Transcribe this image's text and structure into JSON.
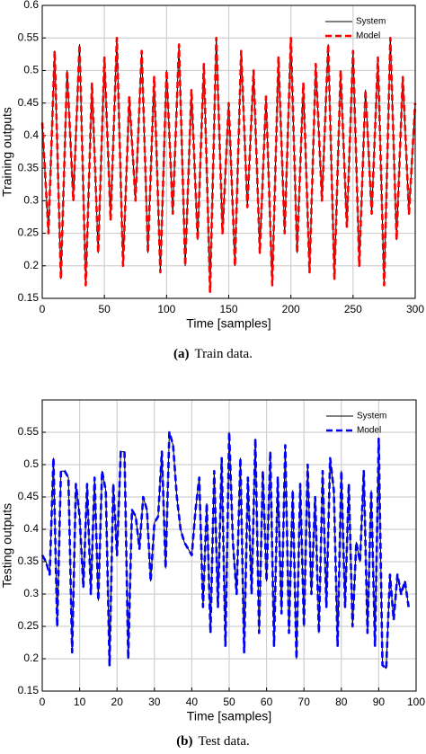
{
  "chart_data": [
    {
      "type": "line",
      "xlabel": "Time [samples]",
      "ylabel": "Training outputs",
      "caption_label": "(a)",
      "caption": "Train data.",
      "xlim": [
        0,
        300
      ],
      "xticks": [
        0,
        50,
        100,
        150,
        200,
        250,
        300
      ],
      "ylim": [
        0.15,
        0.6
      ],
      "yticks": [
        0.15,
        0.2,
        0.25,
        0.3,
        0.35,
        0.4,
        0.45,
        0.5,
        0.55,
        0.6
      ],
      "grid": true,
      "legend": "upper right",
      "x": [
        0,
        5,
        10,
        15,
        20,
        25,
        30,
        35,
        40,
        45,
        50,
        55,
        60,
        65,
        70,
        75,
        80,
        85,
        90,
        95,
        100,
        105,
        110,
        115,
        120,
        125,
        130,
        135,
        140,
        145,
        150,
        155,
        160,
        165,
        170,
        175,
        180,
        185,
        190,
        195,
        200,
        205,
        210,
        215,
        220,
        225,
        230,
        235,
        240,
        245,
        250,
        255,
        260,
        265,
        270,
        275,
        280,
        285,
        290,
        295,
        300
      ],
      "series": [
        {
          "name": "System",
          "color": "#000000",
          "style": "solid",
          "values": [
            0.42,
            0.25,
            0.53,
            0.18,
            0.5,
            0.3,
            0.54,
            0.17,
            0.48,
            0.22,
            0.52,
            0.27,
            0.55,
            0.2,
            0.46,
            0.3,
            0.53,
            0.22,
            0.49,
            0.19,
            0.5,
            0.28,
            0.54,
            0.2,
            0.47,
            0.24,
            0.51,
            0.16,
            0.55,
            0.25,
            0.45,
            0.2,
            0.53,
            0.29,
            0.5,
            0.22,
            0.46,
            0.17,
            0.52,
            0.25,
            0.55,
            0.22,
            0.48,
            0.19,
            0.51,
            0.3,
            0.54,
            0.18,
            0.5,
            0.26,
            0.53,
            0.2,
            0.47,
            0.28,
            0.52,
            0.17,
            0.55,
            0.24,
            0.49,
            0.28,
            0.45
          ]
        },
        {
          "name": "Model",
          "color": "#ff0000",
          "style": "dashed",
          "values": [
            0.42,
            0.25,
            0.53,
            0.18,
            0.5,
            0.3,
            0.54,
            0.17,
            0.48,
            0.22,
            0.52,
            0.27,
            0.55,
            0.2,
            0.46,
            0.3,
            0.53,
            0.22,
            0.49,
            0.19,
            0.5,
            0.28,
            0.54,
            0.2,
            0.47,
            0.24,
            0.51,
            0.16,
            0.55,
            0.25,
            0.45,
            0.2,
            0.53,
            0.29,
            0.5,
            0.22,
            0.46,
            0.17,
            0.52,
            0.25,
            0.55,
            0.22,
            0.48,
            0.19,
            0.51,
            0.3,
            0.54,
            0.18,
            0.5,
            0.26,
            0.53,
            0.2,
            0.47,
            0.28,
            0.52,
            0.17,
            0.55,
            0.24,
            0.49,
            0.28,
            0.45
          ]
        }
      ]
    },
    {
      "type": "line",
      "xlabel": "Time [samples]",
      "ylabel": "Testing outputs",
      "caption_label": "(b)",
      "caption": "Test data.",
      "xlim": [
        0,
        100
      ],
      "xticks": [
        0,
        10,
        20,
        30,
        40,
        50,
        60,
        70,
        80,
        90,
        100
      ],
      "ylim": [
        0.15,
        0.6
      ],
      "yticks": [
        0.15,
        0.2,
        0.25,
        0.3,
        0.35,
        0.4,
        0.45,
        0.5,
        0.55
      ],
      "grid": true,
      "legend": "upper right",
      "x": [
        0,
        1,
        2,
        3,
        4,
        5,
        6,
        7,
        8,
        9,
        10,
        11,
        12,
        13,
        14,
        15,
        16,
        17,
        18,
        19,
        20,
        21,
        22,
        23,
        24,
        25,
        26,
        27,
        28,
        29,
        30,
        31,
        32,
        33,
        34,
        35,
        36,
        37,
        38,
        39,
        40,
        41,
        42,
        43,
        44,
        45,
        46,
        47,
        48,
        49,
        50,
        51,
        52,
        53,
        54,
        55,
        56,
        57,
        58,
        59,
        60,
        61,
        62,
        63,
        64,
        65,
        66,
        67,
        68,
        69,
        70,
        71,
        72,
        73,
        74,
        75,
        76,
        77,
        78,
        79,
        80,
        81,
        82,
        83,
        84,
        85,
        86,
        87,
        88,
        89,
        90,
        91,
        92,
        93,
        94,
        95,
        96,
        97,
        98
      ],
      "series": [
        {
          "name": "System",
          "color": "#000000",
          "style": "solid",
          "values": [
            0.36,
            0.35,
            0.33,
            0.51,
            0.25,
            0.49,
            0.49,
            0.48,
            0.21,
            0.47,
            0.42,
            0.31,
            0.47,
            0.3,
            0.48,
            0.29,
            0.49,
            0.46,
            0.19,
            0.47,
            0.36,
            0.52,
            0.52,
            0.2,
            0.43,
            0.42,
            0.37,
            0.45,
            0.43,
            0.32,
            0.41,
            0.42,
            0.52,
            0.34,
            0.55,
            0.53,
            0.45,
            0.4,
            0.38,
            0.37,
            0.36,
            0.43,
            0.48,
            0.28,
            0.44,
            0.24,
            0.49,
            0.28,
            0.51,
            0.22,
            0.55,
            0.38,
            0.3,
            0.51,
            0.21,
            0.48,
            0.3,
            0.54,
            0.24,
            0.49,
            0.32,
            0.52,
            0.22,
            0.48,
            0.27,
            0.53,
            0.24,
            0.46,
            0.2,
            0.47,
            0.25,
            0.5,
            0.3,
            0.45,
            0.24,
            0.49,
            0.28,
            0.51,
            0.46,
            0.22,
            0.49,
            0.28,
            0.47,
            0.25,
            0.38,
            0.35,
            0.49,
            0.24,
            0.46,
            0.22,
            0.54,
            0.19,
            0.185,
            0.33,
            0.26,
            0.33,
            0.3,
            0.32,
            0.28
          ]
        },
        {
          "name": "Model",
          "color": "#0000ff",
          "style": "dashed",
          "values": [
            0.36,
            0.35,
            0.33,
            0.51,
            0.25,
            0.49,
            0.49,
            0.48,
            0.21,
            0.47,
            0.42,
            0.31,
            0.47,
            0.3,
            0.48,
            0.29,
            0.49,
            0.46,
            0.19,
            0.47,
            0.36,
            0.52,
            0.52,
            0.2,
            0.43,
            0.42,
            0.37,
            0.45,
            0.43,
            0.32,
            0.41,
            0.42,
            0.52,
            0.34,
            0.55,
            0.53,
            0.45,
            0.4,
            0.38,
            0.37,
            0.36,
            0.43,
            0.48,
            0.28,
            0.44,
            0.24,
            0.49,
            0.28,
            0.51,
            0.22,
            0.55,
            0.38,
            0.3,
            0.51,
            0.21,
            0.48,
            0.3,
            0.54,
            0.24,
            0.49,
            0.32,
            0.52,
            0.22,
            0.48,
            0.27,
            0.53,
            0.24,
            0.46,
            0.2,
            0.47,
            0.25,
            0.5,
            0.3,
            0.45,
            0.24,
            0.49,
            0.28,
            0.51,
            0.46,
            0.22,
            0.49,
            0.28,
            0.47,
            0.25,
            0.38,
            0.35,
            0.49,
            0.24,
            0.46,
            0.22,
            0.54,
            0.19,
            0.185,
            0.33,
            0.26,
            0.33,
            0.3,
            0.32,
            0.28
          ]
        }
      ]
    }
  ]
}
